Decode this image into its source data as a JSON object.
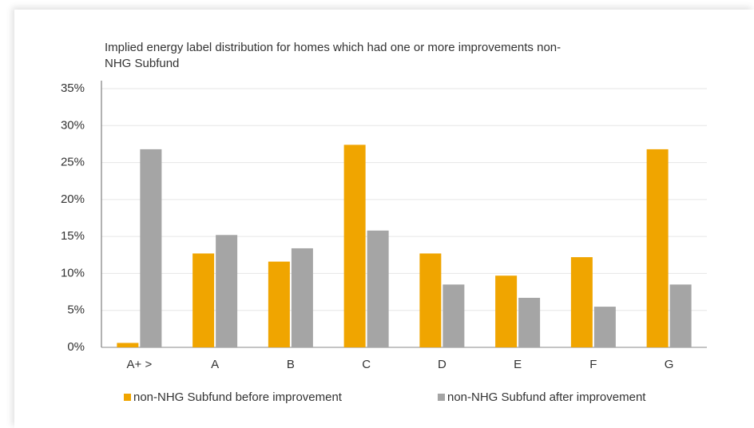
{
  "chart_data": {
    "type": "bar",
    "title": "Implied energy label distribution for homes which had one or more improvements non-NHG Subfund",
    "categories": [
      "A+ >",
      "A",
      "B",
      "C",
      "D",
      "E",
      "F",
      "G"
    ],
    "series": [
      {
        "name": "non-NHG Subfund before improvement",
        "color": "#f0a500",
        "values": [
          0.6,
          12.7,
          11.6,
          27.4,
          12.7,
          9.7,
          12.2,
          26.8
        ]
      },
      {
        "name": "non-NHG Subfund after improvement",
        "color": "#a5a5a5",
        "values": [
          26.8,
          15.2,
          13.4,
          15.8,
          8.5,
          6.7,
          5.5,
          8.5
        ]
      }
    ],
    "ylim": [
      0,
      35
    ],
    "yticks": [
      {
        "value": 0,
        "label": "0%"
      },
      {
        "value": 5,
        "label": "5%"
      },
      {
        "value": 10,
        "label": "10%"
      },
      {
        "value": 15,
        "label": "15%"
      },
      {
        "value": 20,
        "label": "20%"
      },
      {
        "value": 25,
        "label": "25%"
      },
      {
        "value": 30,
        "label": "30%"
      },
      {
        "value": 35,
        "label": "35%"
      }
    ],
    "grid": true
  }
}
